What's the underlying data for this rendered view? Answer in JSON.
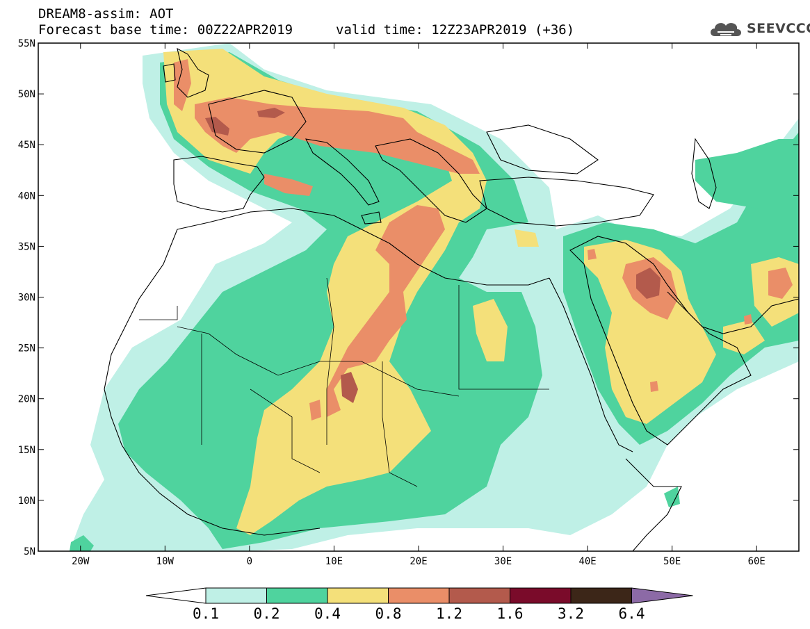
{
  "header": {
    "title_line1": "DREAM8-assim: AOT",
    "title_line2": "Forecast base time: 00Z22APR2019",
    "valid_time": "valid time: 12Z23APR2019 (+36)"
  },
  "logo": {
    "text": "SEEVCCC",
    "icon": "cloud-icon"
  },
  "map": {
    "lon_range": [
      -25,
      65
    ],
    "lat_range": [
      5,
      55
    ],
    "lat_labels": [
      "55N",
      "50N",
      "45N",
      "40N",
      "35N",
      "30N",
      "25N",
      "20N",
      "15N",
      "10N",
      "5N"
    ],
    "lon_labels": [
      "20W",
      "10W",
      "0",
      "10E",
      "20E",
      "30E",
      "40E",
      "50E",
      "60E"
    ],
    "field_colors": {
      "c01": "#bff0e6",
      "c02": "#4fd39e",
      "c04": "#f4e07a",
      "c08": "#ea8e68",
      "c12": "#b35a4c",
      "c16": "#7a0b2a",
      "c32": "#3c2618",
      "c64": "#8c6aa6"
    }
  },
  "colorbar": {
    "labels": [
      "0.1",
      "0.2",
      "0.4",
      "0.8",
      "1.2",
      "1.6",
      "3.2",
      "6.4"
    ],
    "colors": [
      "#ffffff",
      "#bff0e6",
      "#4fd39e",
      "#f4e07a",
      "#ea8e68",
      "#b35a4c",
      "#7a0b2a",
      "#3c2618",
      "#8c6aa6"
    ]
  }
}
